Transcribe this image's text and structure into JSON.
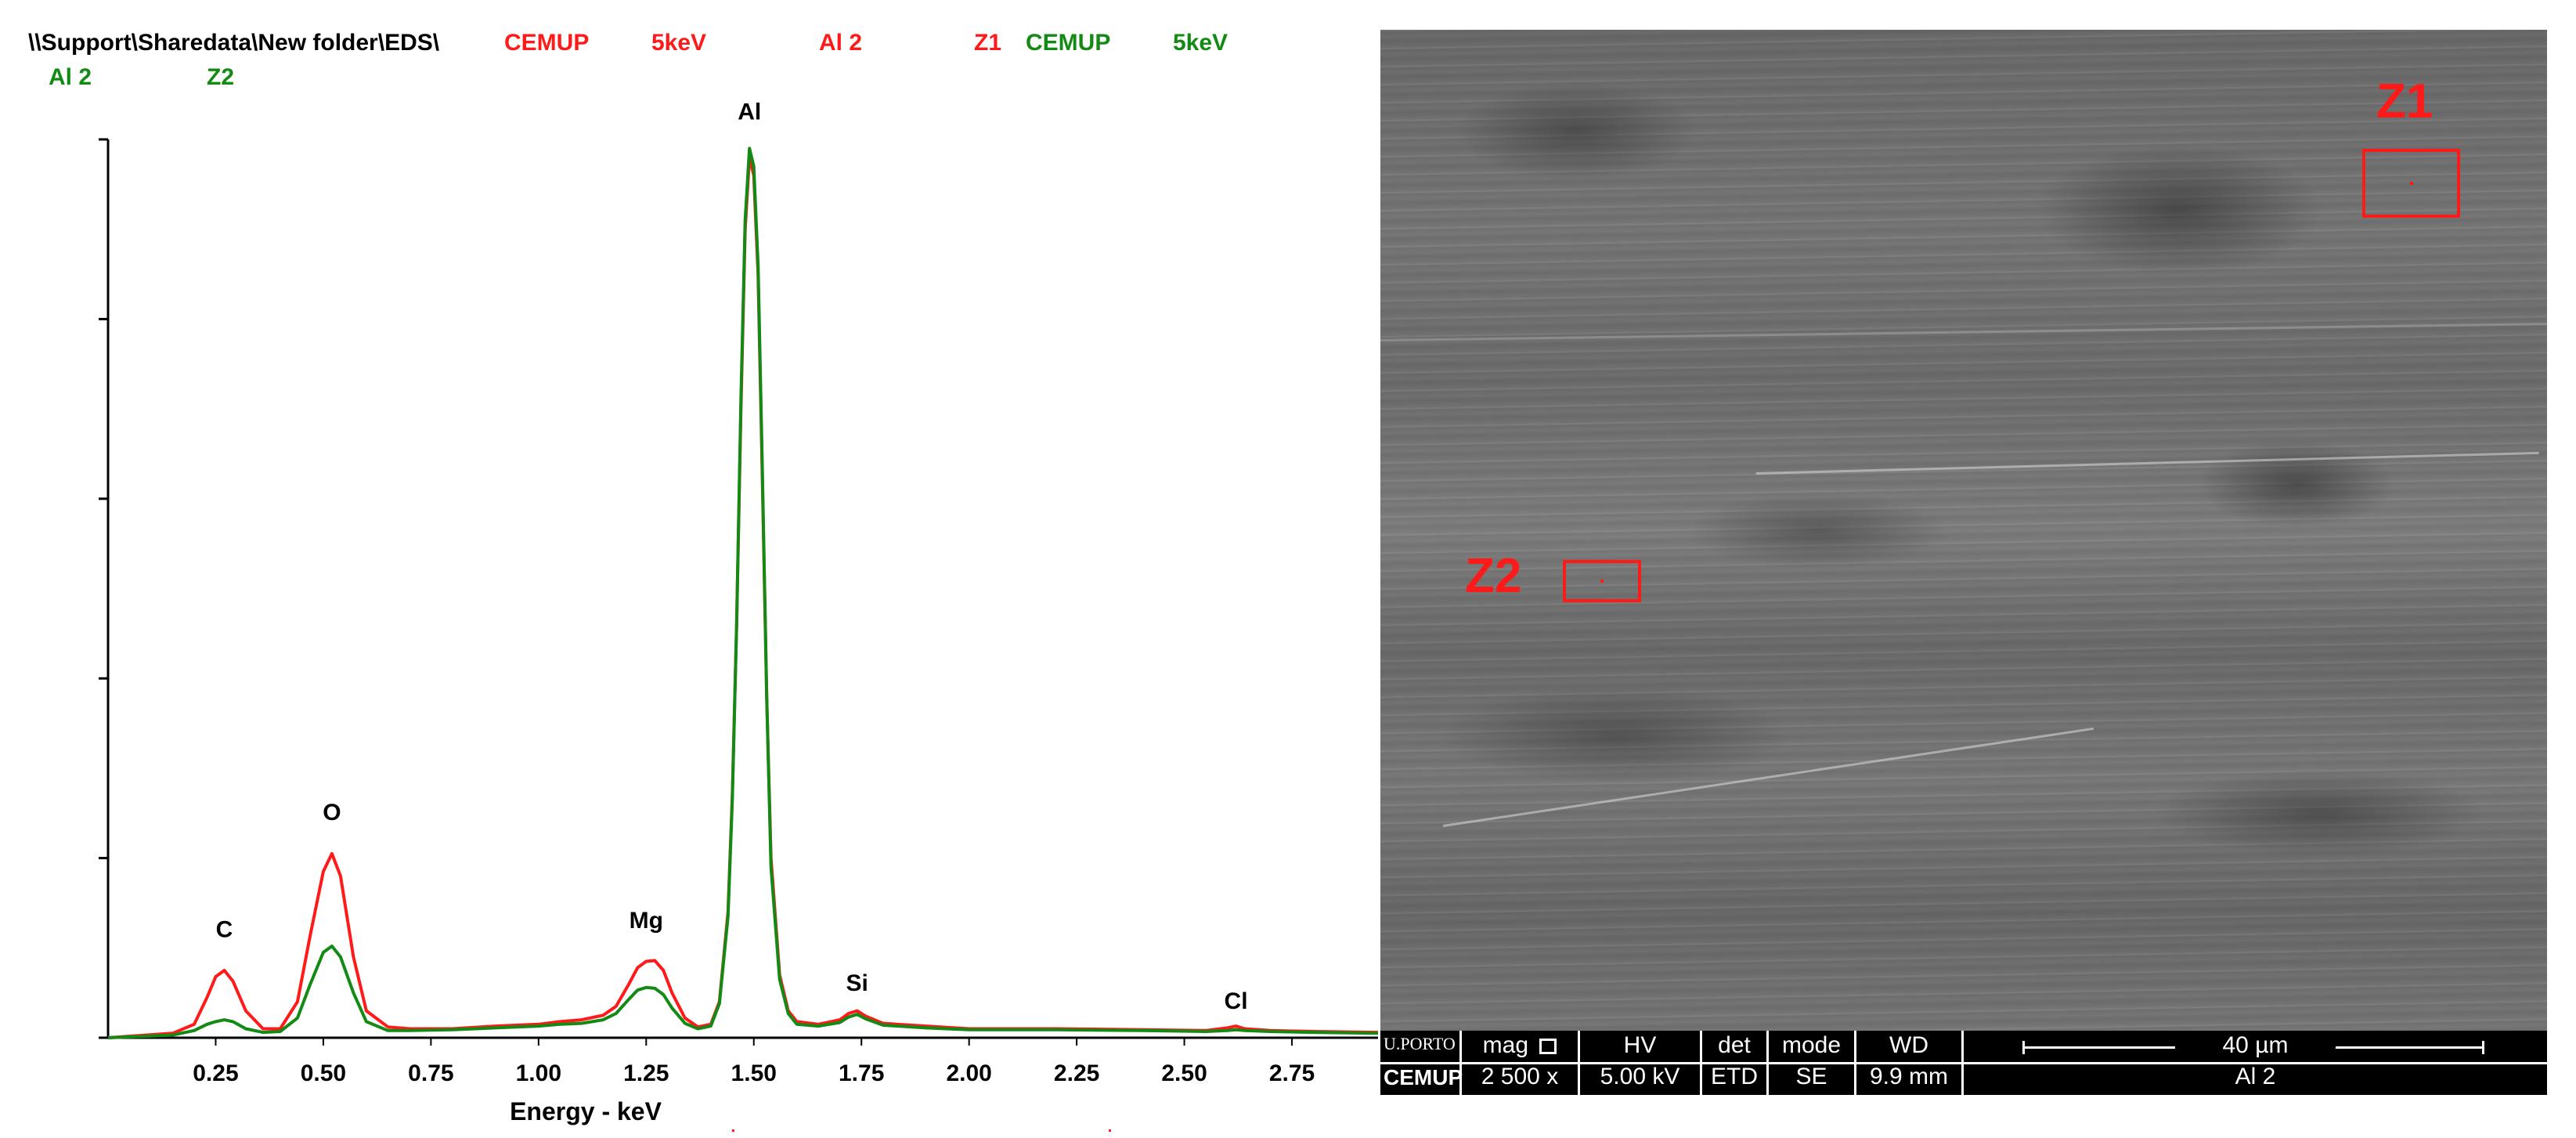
{
  "header": {
    "path": "\\\\Support\\Sharedata\\New folder\\EDS\\",
    "spectrum1": {
      "lab": "CEMUP",
      "energy": "5keV",
      "sample": "Al 2",
      "zone": "Z1",
      "color": "#ff1a1a"
    },
    "spectrum2": {
      "lab": "CEMUP",
      "energy": "5keV",
      "sample": "Al 2",
      "zone": "Z2",
      "color": "#138a13"
    }
  },
  "chart_data": {
    "type": "line",
    "xlabel": "Energy - keV",
    "xlim": [
      0.0,
      2.95
    ],
    "ylim": [
      0,
      100
    ],
    "xticks": [
      0.25,
      0.5,
      0.75,
      1.0,
      1.25,
      1.5,
      1.75,
      2.0,
      2.25,
      2.5,
      2.75
    ],
    "xtick_labels": [
      "0.25",
      "0.50",
      "0.75",
      "1.00",
      "1.25",
      "1.50",
      "1.75",
      "2.00",
      "2.25",
      "2.50",
      "2.75"
    ],
    "y_tick_count": 5,
    "peak_labels": [
      {
        "label": "C",
        "x": 0.27,
        "y": 10.0
      },
      {
        "label": "O",
        "x": 0.52,
        "y": 23.0
      },
      {
        "label": "Mg",
        "x": 1.25,
        "y": 11.0
      },
      {
        "label": "Al",
        "x": 1.49,
        "y": 101.0
      },
      {
        "label": "Si",
        "x": 1.74,
        "y": 4.0
      },
      {
        "label": "Cl",
        "x": 2.62,
        "y": 2.0
      }
    ],
    "series": [
      {
        "name": "Z1",
        "color": "#ff1a1a",
        "x": [
          0.0,
          0.15,
          0.2,
          0.23,
          0.25,
          0.27,
          0.29,
          0.32,
          0.36,
          0.4,
          0.44,
          0.47,
          0.5,
          0.52,
          0.54,
          0.57,
          0.6,
          0.65,
          0.7,
          0.8,
          0.9,
          1.0,
          1.05,
          1.1,
          1.15,
          1.18,
          1.21,
          1.23,
          1.25,
          1.27,
          1.29,
          1.31,
          1.34,
          1.37,
          1.4,
          1.42,
          1.44,
          1.45,
          1.46,
          1.47,
          1.48,
          1.49,
          1.5,
          1.51,
          1.52,
          1.53,
          1.54,
          1.56,
          1.58,
          1.6,
          1.65,
          1.7,
          1.72,
          1.74,
          1.76,
          1.8,
          1.9,
          2.0,
          2.2,
          2.4,
          2.55,
          2.6,
          2.62,
          2.64,
          2.7,
          2.8,
          2.95
        ],
        "y": [
          0,
          0.5,
          1.5,
          4.5,
          6.8,
          7.5,
          6.3,
          3.0,
          1.0,
          1.0,
          4.0,
          11.5,
          18.5,
          20.5,
          18.0,
          9.0,
          3.0,
          1.2,
          1.0,
          1.0,
          1.3,
          1.5,
          1.8,
          2.0,
          2.5,
          3.5,
          6.0,
          7.8,
          8.5,
          8.6,
          7.5,
          5.0,
          2.2,
          1.2,
          1.5,
          4.0,
          14.0,
          27.0,
          46.0,
          70.0,
          90.0,
          98.0,
          96.0,
          85.0,
          62.0,
          38.0,
          20.0,
          7.0,
          3.0,
          1.8,
          1.5,
          2.0,
          2.7,
          3.0,
          2.4,
          1.6,
          1.3,
          1.0,
          1.0,
          0.9,
          0.8,
          1.1,
          1.3,
          1.0,
          0.8,
          0.7,
          0.6
        ]
      },
      {
        "name": "Z2",
        "color": "#138a13",
        "x": [
          0.0,
          0.15,
          0.2,
          0.23,
          0.25,
          0.27,
          0.29,
          0.32,
          0.36,
          0.4,
          0.44,
          0.47,
          0.5,
          0.52,
          0.54,
          0.57,
          0.6,
          0.65,
          0.7,
          0.8,
          0.9,
          1.0,
          1.05,
          1.1,
          1.15,
          1.18,
          1.21,
          1.23,
          1.25,
          1.27,
          1.29,
          1.31,
          1.34,
          1.37,
          1.4,
          1.42,
          1.44,
          1.45,
          1.46,
          1.47,
          1.48,
          1.49,
          1.5,
          1.51,
          1.52,
          1.53,
          1.54,
          1.56,
          1.58,
          1.6,
          1.65,
          1.7,
          1.72,
          1.74,
          1.76,
          1.8,
          1.9,
          2.0,
          2.2,
          2.4,
          2.55,
          2.6,
          2.62,
          2.64,
          2.7,
          2.8,
          2.95
        ],
        "y": [
          0,
          0.3,
          0.8,
          1.5,
          1.8,
          2.0,
          1.8,
          1.0,
          0.6,
          0.7,
          2.2,
          6.0,
          9.5,
          10.2,
          9.0,
          5.0,
          1.8,
          0.8,
          0.8,
          0.9,
          1.1,
          1.3,
          1.5,
          1.6,
          2.0,
          2.7,
          4.3,
          5.3,
          5.6,
          5.5,
          4.8,
          3.3,
          1.6,
          1.0,
          1.3,
          3.8,
          13.5,
          26.5,
          46.0,
          71.0,
          91.0,
          99.0,
          97.0,
          86.0,
          63.0,
          38.0,
          19.0,
          6.5,
          2.7,
          1.5,
          1.3,
          1.7,
          2.3,
          2.6,
          2.1,
          1.4,
          1.1,
          0.9,
          0.9,
          0.8,
          0.7,
          0.8,
          0.9,
          0.8,
          0.7,
          0.6,
          0.5
        ]
      }
    ]
  },
  "sem": {
    "zones": [
      {
        "label": "Z1"
      },
      {
        "label": "Z2"
      }
    ],
    "databar": {
      "logo_top": "U.PORTO",
      "logo_bottom": "CEMUP",
      "mag_label": "mag",
      "mag_icon": "square-icon",
      "mag_value": "2 500 x",
      "hv_label": "HV",
      "hv_value": "5.00 kV",
      "det_label": "det",
      "det_value": "ETD",
      "mode_label": "mode",
      "mode_value": "SE",
      "wd_label": "WD",
      "wd_value": "9.9 mm",
      "scale_label": "40 µm",
      "sample_name": "Al 2"
    }
  }
}
